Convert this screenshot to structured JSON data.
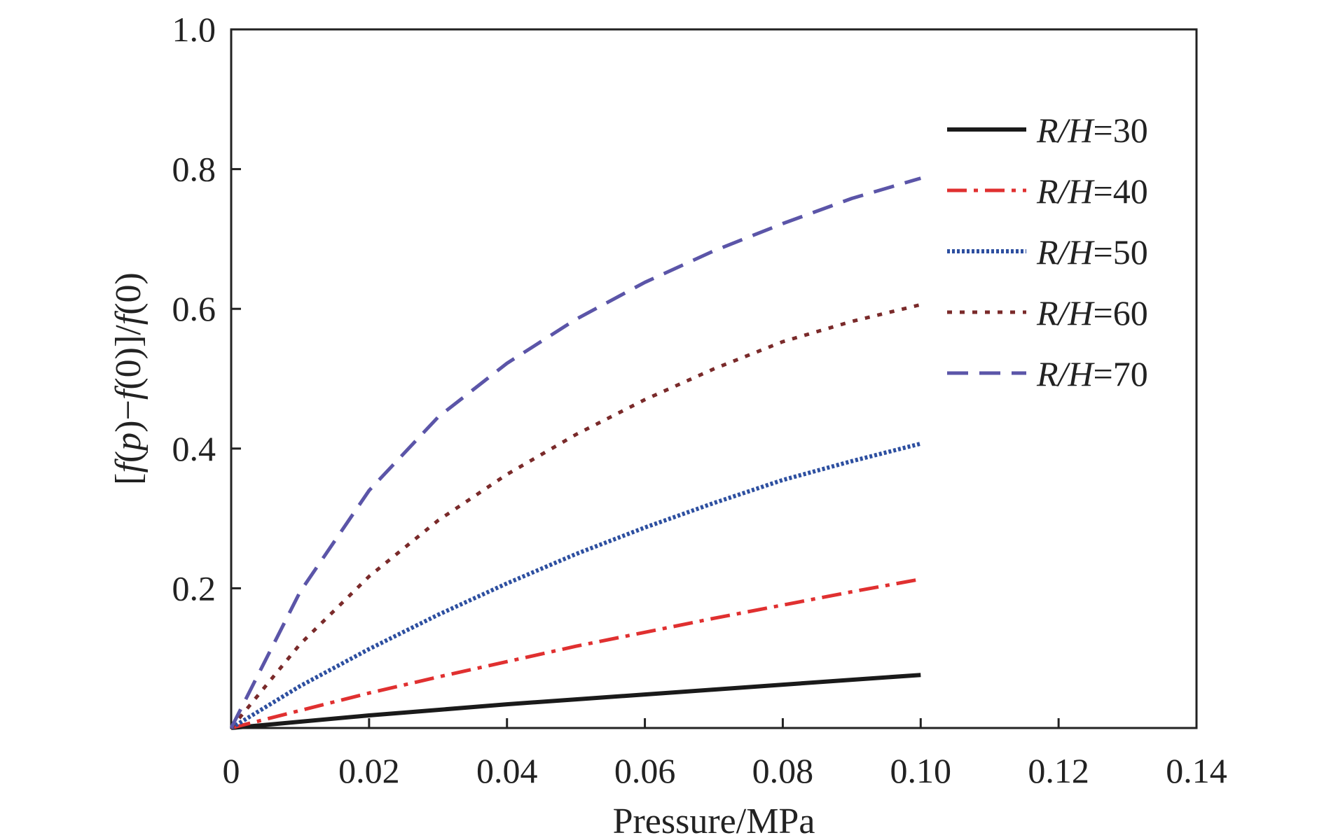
{
  "chart_data": {
    "type": "line",
    "xlabel": "Pressure/MPa",
    "ylabel": "[f(p)−f(0)]/f(0)",
    "ylabel_parts": [
      {
        "text": "[",
        "italic": false
      },
      {
        "text": "f",
        "italic": true
      },
      {
        "text": "(",
        "italic": false
      },
      {
        "text": "p",
        "italic": true
      },
      {
        "text": ")−",
        "italic": false
      },
      {
        "text": "f",
        "italic": true
      },
      {
        "text": "(0)]/",
        "italic": false
      },
      {
        "text": "f",
        "italic": true
      },
      {
        "text": "(0)",
        "italic": false
      }
    ],
    "xlim": [
      0,
      0.14
    ],
    "ylim": [
      0,
      1.0
    ],
    "x_ticks": [
      {
        "value": 0,
        "label": "0"
      },
      {
        "value": 0.02,
        "label": "0.02"
      },
      {
        "value": 0.04,
        "label": "0.04"
      },
      {
        "value": 0.06,
        "label": "0.06"
      },
      {
        "value": 0.08,
        "label": "0.08"
      },
      {
        "value": 0.1,
        "label": "0.10"
      },
      {
        "value": 0.12,
        "label": "0.12"
      },
      {
        "value": 0.14,
        "label": "0.14"
      }
    ],
    "y_ticks": [
      {
        "value": 0.2,
        "label": "0.2"
      },
      {
        "value": 0.4,
        "label": "0.4"
      },
      {
        "value": 0.6,
        "label": "0.6"
      },
      {
        "value": 0.8,
        "label": "0.8"
      },
      {
        "value": 1.0,
        "label": "1.0"
      }
    ],
    "grid": false,
    "legend_position": "right",
    "legend_prefix_italic": "R/H",
    "series": [
      {
        "name": "R/H=30",
        "label_value": "=30",
        "color": "#1a1a1a",
        "dash": "solid",
        "x": [
          0,
          0.01,
          0.02,
          0.03,
          0.04,
          0.05,
          0.06,
          0.07,
          0.08,
          0.09,
          0.1
        ],
        "y": [
          0,
          0.009,
          0.018,
          0.026,
          0.034,
          0.041,
          0.048,
          0.055,
          0.062,
          0.069,
          0.076
        ]
      },
      {
        "name": "R/H=40",
        "label_value": "=40",
        "color": "#e03030",
        "dash": "dashdot",
        "x": [
          0,
          0.01,
          0.02,
          0.03,
          0.04,
          0.05,
          0.06,
          0.07,
          0.08,
          0.09,
          0.1
        ],
        "y": [
          0,
          0.025,
          0.05,
          0.073,
          0.095,
          0.117,
          0.137,
          0.157,
          0.176,
          0.195,
          0.213
        ]
      },
      {
        "name": "R/H=50",
        "label_value": "=50",
        "color": "#2d4fa0",
        "dash": "dotted",
        "x": [
          0,
          0.01,
          0.02,
          0.03,
          0.04,
          0.05,
          0.06,
          0.07,
          0.08,
          0.09,
          0.1
        ],
        "y": [
          0,
          0.06,
          0.113,
          0.162,
          0.207,
          0.249,
          0.287,
          0.322,
          0.355,
          0.382,
          0.407
        ]
      },
      {
        "name": "R/H=60",
        "label_value": "=60",
        "color": "#7a2a2a",
        "dash": "dotted-wide",
        "x": [
          0,
          0.01,
          0.02,
          0.03,
          0.04,
          0.05,
          0.06,
          0.07,
          0.08,
          0.09,
          0.1
        ],
        "y": [
          0,
          0.12,
          0.217,
          0.297,
          0.363,
          0.42,
          0.47,
          0.514,
          0.553,
          0.582,
          0.606
        ]
      },
      {
        "name": "R/H=70",
        "label_value": "=70",
        "color": "#5b55a8",
        "dash": "dashed",
        "x": [
          0,
          0.01,
          0.02,
          0.03,
          0.04,
          0.05,
          0.06,
          0.07,
          0.08,
          0.09,
          0.1
        ],
        "y": [
          0,
          0.195,
          0.34,
          0.445,
          0.522,
          0.585,
          0.638,
          0.683,
          0.722,
          0.758,
          0.787
        ]
      }
    ]
  }
}
